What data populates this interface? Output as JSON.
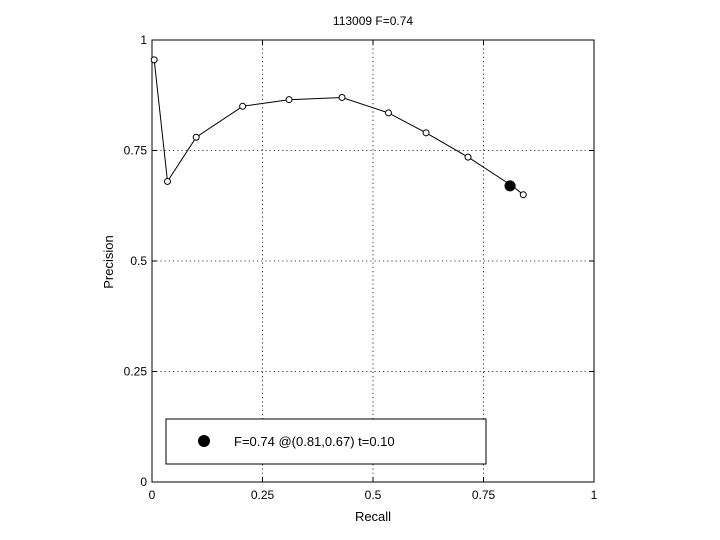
{
  "chart_data": {
    "type": "line",
    "title": "113009 F=0.74",
    "xlabel": "Recall",
    "ylabel": "Precision",
    "xlim": [
      0,
      1
    ],
    "ylim": [
      0,
      1
    ],
    "grid": true,
    "xticks": [
      0,
      0.25,
      0.5,
      0.75,
      1
    ],
    "xtick_labels": [
      "0",
      "0.25",
      "0.5",
      "0.75",
      "1"
    ],
    "yticks": [
      0,
      0.25,
      0.5,
      0.75,
      1
    ],
    "ytick_labels": [
      "0",
      "0.25",
      "0.5",
      "0.75",
      "1"
    ],
    "series": [
      {
        "marker": "open-circle",
        "color": "#000000",
        "x": [
          0.005,
          0.035,
          0.1,
          0.205,
          0.31,
          0.43,
          0.535,
          0.62,
          0.715,
          0.815,
          0.84
        ],
        "y": [
          0.955,
          0.68,
          0.78,
          0.85,
          0.865,
          0.87,
          0.835,
          0.79,
          0.735,
          0.67,
          0.65
        ]
      }
    ],
    "highlight_point": {
      "x": 0.81,
      "y": 0.67,
      "marker": "filled-circle",
      "color": "#000000"
    },
    "legend": {
      "placement": "bottom-left",
      "entries": [
        {
          "label": "F=0.74 @(0.81,0.67) t=0.10",
          "marker": "filled-circle"
        }
      ]
    }
  }
}
